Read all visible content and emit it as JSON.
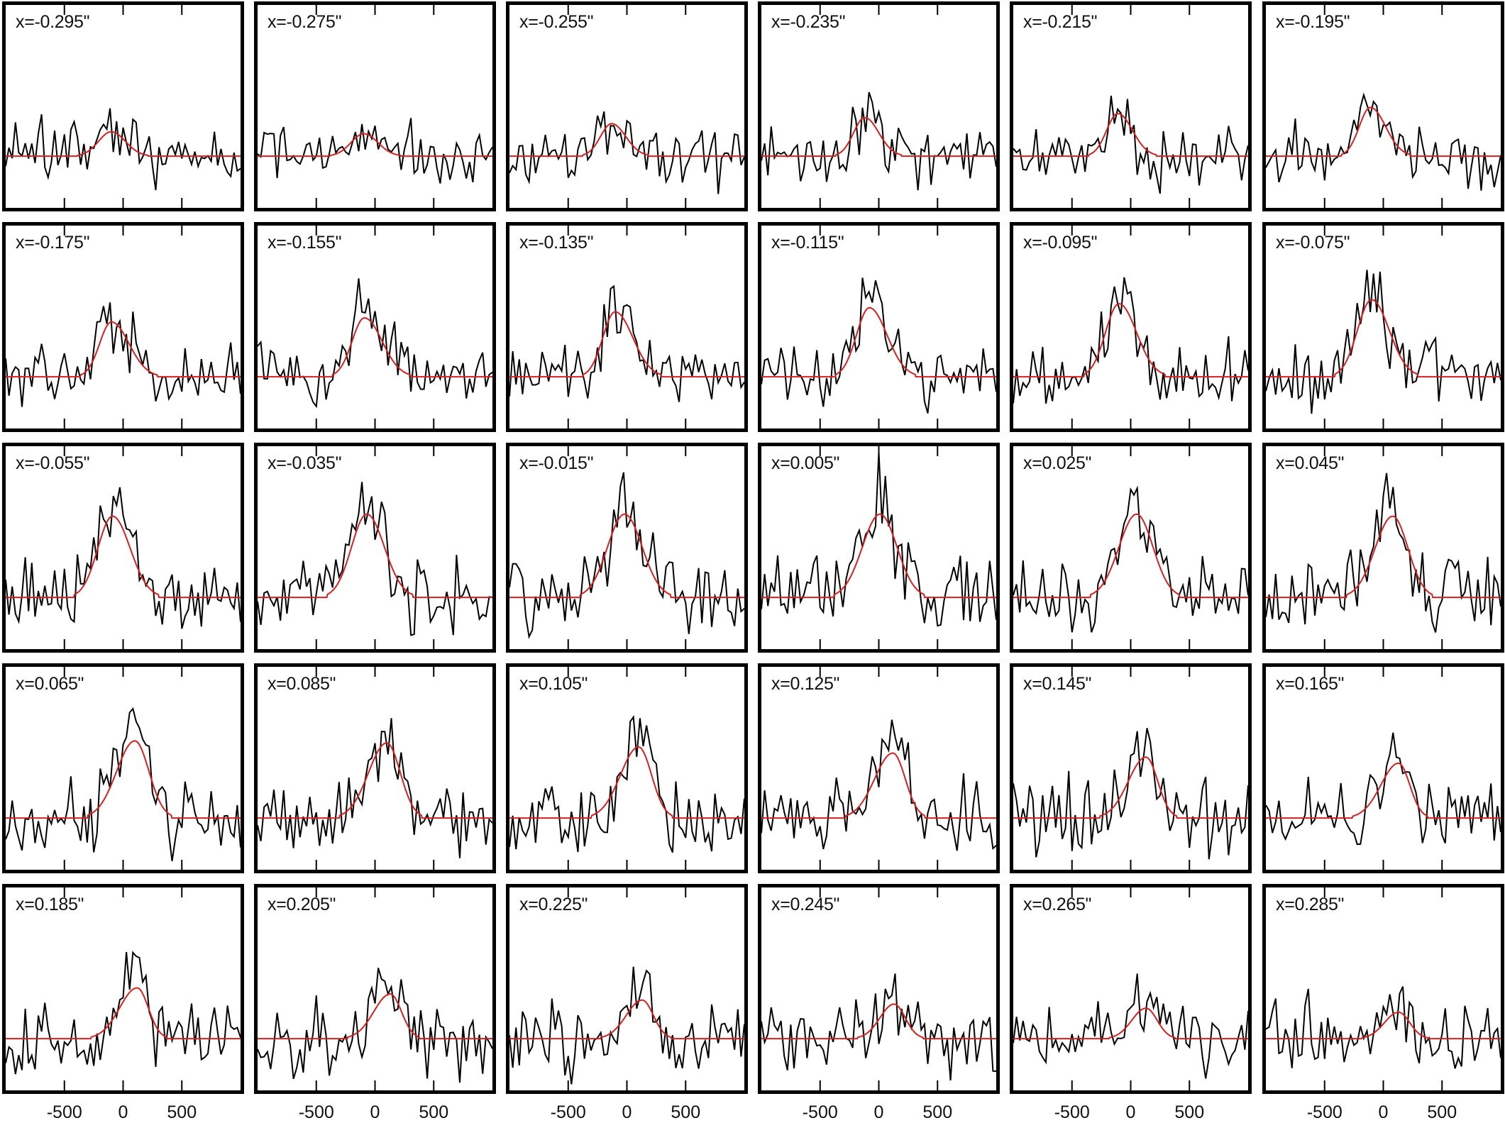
{
  "chart_data": {
    "type": "line",
    "layout": {
      "rows": 5,
      "cols": 6,
      "grid": false,
      "legend": "none"
    },
    "xlabel": "",
    "ylabel": "",
    "xlim": [
      -1000,
      1000
    ],
    "x_ticks": [
      -500,
      0,
      500
    ],
    "x_tick_labels": [
      "-500",
      "0",
      "500"
    ],
    "baseline_fraction_from_top": 0.745,
    "series_styles": {
      "spectrum": "#000000",
      "fit": "#d42020"
    },
    "panels": [
      {
        "label": "x=-0.295\"",
        "fit": {
          "center": -100,
          "amp": 0.12,
          "sigma_l": 110,
          "sigma_r": 120
        },
        "noise": 0.07,
        "seed": 11
      },
      {
        "label": "x=-0.275\"",
        "fit": {
          "center": -95,
          "amp": 0.11,
          "sigma_l": 110,
          "sigma_r": 120
        },
        "noise": 0.07,
        "seed": 12
      },
      {
        "label": "x=-0.255\"",
        "fit": {
          "center": -130,
          "amp": 0.16,
          "sigma_l": 95,
          "sigma_r": 120
        },
        "noise": 0.07,
        "seed": 13
      },
      {
        "label": "x=-0.235\"",
        "fit": {
          "center": -120,
          "amp": 0.19,
          "sigma_l": 95,
          "sigma_r": 120
        },
        "noise": 0.07,
        "seed": 14
      },
      {
        "label": "x=-0.215\"",
        "fit": {
          "center": -110,
          "amp": 0.21,
          "sigma_l": 95,
          "sigma_r": 125
        },
        "noise": 0.07,
        "seed": 15
      },
      {
        "label": "x=-0.195\"",
        "fit": {
          "center": -110,
          "amp": 0.24,
          "sigma_l": 95,
          "sigma_r": 130
        },
        "noise": 0.07,
        "seed": 16
      },
      {
        "label": "x=-0.175\"",
        "fit": {
          "center": -100,
          "amp": 0.27,
          "sigma_l": 100,
          "sigma_r": 150
        },
        "noise": 0.07,
        "seed": 21
      },
      {
        "label": "x=-0.155\"",
        "fit": {
          "center": -90,
          "amp": 0.29,
          "sigma_l": 105,
          "sigma_r": 150
        },
        "noise": 0.07,
        "seed": 22
      },
      {
        "label": "x=-0.135\"",
        "fit": {
          "center": -100,
          "amp": 0.32,
          "sigma_l": 105,
          "sigma_r": 150
        },
        "noise": 0.07,
        "seed": 23
      },
      {
        "label": "x=-0.115\"",
        "fit": {
          "center": -80,
          "amp": 0.34,
          "sigma_l": 110,
          "sigma_r": 150
        },
        "noise": 0.07,
        "seed": 24
      },
      {
        "label": "x=-0.095\"",
        "fit": {
          "center": -100,
          "amp": 0.36,
          "sigma_l": 115,
          "sigma_r": 150
        },
        "noise": 0.07,
        "seed": 25
      },
      {
        "label": "x=-0.075\"",
        "fit": {
          "center": -100,
          "amp": 0.38,
          "sigma_l": 120,
          "sigma_r": 150
        },
        "noise": 0.07,
        "seed": 26
      },
      {
        "label": "x=-0.055\"",
        "fit": {
          "center": -90,
          "amp": 0.4,
          "sigma_l": 125,
          "sigma_r": 150
        },
        "noise": 0.08,
        "seed": 31
      },
      {
        "label": "x=-0.035\"",
        "fit": {
          "center": -70,
          "amp": 0.41,
          "sigma_l": 130,
          "sigma_r": 150
        },
        "noise": 0.08,
        "seed": 32
      },
      {
        "label": "x=-0.015\"",
        "fit": {
          "center": -20,
          "amp": 0.41,
          "sigma_l": 145,
          "sigma_r": 150
        },
        "noise": 0.08,
        "seed": 33
      },
      {
        "label": "x=0.005\"",
        "fit": {
          "center": 10,
          "amp": 0.41,
          "sigma_l": 150,
          "sigma_r": 145
        },
        "noise": 0.08,
        "seed": 34
      },
      {
        "label": "x=0.025\"",
        "fit": {
          "center": 50,
          "amp": 0.41,
          "sigma_l": 150,
          "sigma_r": 140
        },
        "noise": 0.08,
        "seed": 35
      },
      {
        "label": "x=0.045\"",
        "fit": {
          "center": 80,
          "amp": 0.4,
          "sigma_l": 150,
          "sigma_r": 130
        },
        "noise": 0.08,
        "seed": 36
      },
      {
        "label": "x=0.065\"",
        "fit": {
          "center": 100,
          "amp": 0.38,
          "sigma_l": 155,
          "sigma_r": 120
        },
        "noise": 0.08,
        "seed": 41
      },
      {
        "label": "x=0.085\"",
        "fit": {
          "center": 100,
          "amp": 0.37,
          "sigma_l": 155,
          "sigma_r": 115
        },
        "noise": 0.08,
        "seed": 42
      },
      {
        "label": "x=0.105\"",
        "fit": {
          "center": 100,
          "amp": 0.35,
          "sigma_l": 155,
          "sigma_r": 110
        },
        "noise": 0.08,
        "seed": 43
      },
      {
        "label": "x=0.125\"",
        "fit": {
          "center": 120,
          "amp": 0.32,
          "sigma_l": 155,
          "sigma_r": 105
        },
        "noise": 0.08,
        "seed": 44
      },
      {
        "label": "x=0.145\"",
        "fit": {
          "center": 130,
          "amp": 0.3,
          "sigma_l": 150,
          "sigma_r": 100
        },
        "noise": 0.08,
        "seed": 45
      },
      {
        "label": "x=0.165\"",
        "fit": {
          "center": 130,
          "amp": 0.27,
          "sigma_l": 150,
          "sigma_r": 95
        },
        "noise": 0.08,
        "seed": 46
      },
      {
        "label": "x=0.185\"",
        "fit": {
          "center": 120,
          "amp": 0.25,
          "sigma_l": 150,
          "sigma_r": 95
        },
        "noise": 0.08,
        "seed": 51
      },
      {
        "label": "x=0.205\"",
        "fit": {
          "center": 130,
          "amp": 0.22,
          "sigma_l": 140,
          "sigma_r": 95
        },
        "noise": 0.08,
        "seed": 52
      },
      {
        "label": "x=0.225\"",
        "fit": {
          "center": 130,
          "amp": 0.19,
          "sigma_l": 135,
          "sigma_r": 95
        },
        "noise": 0.08,
        "seed": 53
      },
      {
        "label": "x=0.245\"",
        "fit": {
          "center": 130,
          "amp": 0.17,
          "sigma_l": 120,
          "sigma_r": 95
        },
        "noise": 0.08,
        "seed": 54
      },
      {
        "label": "x=0.265\"",
        "fit": {
          "center": 130,
          "amp": 0.15,
          "sigma_l": 120,
          "sigma_r": 95
        },
        "noise": 0.08,
        "seed": 55
      },
      {
        "label": "x=0.285\"",
        "fit": {
          "center": 130,
          "amp": 0.13,
          "sigma_l": 120,
          "sigma_r": 95
        },
        "noise": 0.08,
        "seed": 56
      }
    ]
  }
}
